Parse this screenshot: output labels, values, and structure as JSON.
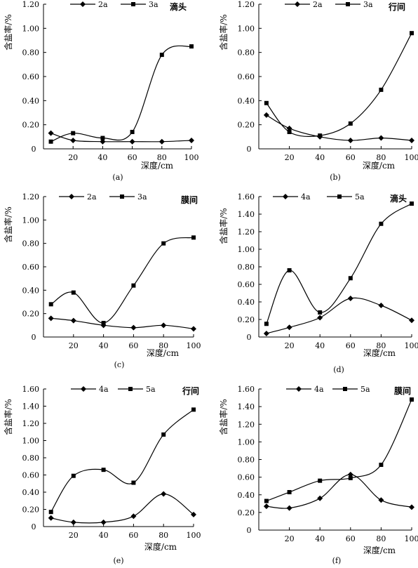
{
  "chart_data": [
    {
      "type": "line",
      "caption": "(a)",
      "corner_label": "滴头",
      "xlabel": "深度/cm",
      "ylabel": "含盐率/%",
      "x_ticks": [
        20,
        40,
        60,
        80,
        100
      ],
      "x_zero_label": "0",
      "y_tick_labels": [
        "0.20",
        "0.40",
        "0.60",
        "0.80",
        "1.00",
        "1.20"
      ],
      "ylim": [
        0,
        1.2
      ],
      "xlim": [
        0,
        100
      ],
      "legend_placement": "top-center",
      "series": [
        {
          "name": "2a",
          "marker": "diamond",
          "x": [
            5,
            20,
            40,
            60,
            80,
            100
          ],
          "y": [
            0.13,
            0.07,
            0.06,
            0.06,
            0.06,
            0.07
          ]
        },
        {
          "name": "3a",
          "marker": "square",
          "x": [
            5,
            20,
            40,
            60,
            80,
            100
          ],
          "y": [
            0.06,
            0.13,
            0.09,
            0.14,
            0.78,
            0.85
          ]
        }
      ]
    },
    {
      "type": "line",
      "caption": "(b)",
      "corner_label": "行间",
      "xlabel": "深度/cm",
      "ylabel": "含盐率/%",
      "x_ticks": [
        20,
        40,
        60,
        80,
        100
      ],
      "x_zero_label": "0",
      "y_tick_labels": [
        "0.20",
        "0.40",
        "0.60",
        "0.80",
        "1.00",
        "1.20"
      ],
      "ylim": [
        0,
        1.2
      ],
      "xlim": [
        0,
        100
      ],
      "legend_placement": "top-center",
      "series": [
        {
          "name": "2a",
          "marker": "diamond",
          "x": [
            5,
            20,
            40,
            60,
            80,
            100
          ],
          "y": [
            0.28,
            0.17,
            0.1,
            0.07,
            0.09,
            0.07
          ]
        },
        {
          "name": "3a",
          "marker": "square",
          "x": [
            5,
            20,
            40,
            60,
            80,
            100
          ],
          "y": [
            0.38,
            0.14,
            0.11,
            0.21,
            0.49,
            0.96
          ]
        }
      ]
    },
    {
      "type": "line",
      "caption": "(c)",
      "corner_label": "膜间",
      "xlabel": "深度/cm",
      "ylabel": "含盐率/%",
      "x_ticks": [
        20,
        40,
        60,
        80,
        100
      ],
      "x_zero_label": "0",
      "y_tick_labels": [
        "0.20",
        "0.40",
        "0.60",
        "0.80",
        "1.00",
        "1.20"
      ],
      "ylim": [
        0,
        1.2
      ],
      "xlim": [
        0,
        100
      ],
      "legend_placement": "top-center",
      "series": [
        {
          "name": "2a",
          "marker": "diamond",
          "x": [
            5,
            20,
            40,
            60,
            80,
            100
          ],
          "y": [
            0.16,
            0.14,
            0.1,
            0.08,
            0.1,
            0.07
          ]
        },
        {
          "name": "3a",
          "marker": "square",
          "x": [
            5,
            20,
            40,
            60,
            80,
            100
          ],
          "y": [
            0.28,
            0.38,
            0.12,
            0.44,
            0.8,
            0.85
          ]
        }
      ]
    },
    {
      "type": "line",
      "caption": "(d)",
      "corner_label": "滴头",
      "xlabel": "深度/cm",
      "ylabel": "含盐率/%",
      "x_ticks": [
        20,
        40,
        60,
        80,
        100
      ],
      "x_zero_label": "0",
      "y_tick_labels": [
        "0.20",
        "0.40",
        "0.60",
        "0.80",
        "1.00",
        "1.20",
        "1.40",
        "1.60"
      ],
      "ylim": [
        0,
        1.6
      ],
      "xlim": [
        0,
        100
      ],
      "legend_placement": "top-center",
      "series": [
        {
          "name": "4a",
          "marker": "diamond",
          "x": [
            5,
            20,
            40,
            60,
            80,
            100
          ],
          "y": [
            0.04,
            0.11,
            0.22,
            0.44,
            0.36,
            0.19
          ]
        },
        {
          "name": "5a",
          "marker": "square",
          "x": [
            5,
            20,
            40,
            60,
            80,
            100
          ],
          "y": [
            0.15,
            0.76,
            0.28,
            0.67,
            1.29,
            1.52
          ]
        }
      ]
    },
    {
      "type": "line",
      "caption": "(e)",
      "corner_label": "行间",
      "xlabel": "深度/cm",
      "ylabel": "含盐率/%",
      "x_ticks": [
        20,
        40,
        60,
        80,
        100
      ],
      "x_zero_label": "0",
      "y_tick_labels": [
        "0.20",
        "0.40",
        "0.60",
        "0.80",
        "1.00",
        "1.20",
        "1.40",
        "1.60"
      ],
      "ylim": [
        0,
        1.6
      ],
      "xlim": [
        0,
        100
      ],
      "legend_placement": "top-center",
      "series": [
        {
          "name": "4a",
          "marker": "diamond",
          "x": [
            5,
            20,
            40,
            60,
            80,
            100
          ],
          "y": [
            0.1,
            0.05,
            0.05,
            0.12,
            0.38,
            0.14
          ]
        },
        {
          "name": "5a",
          "marker": "square",
          "x": [
            5,
            20,
            40,
            60,
            80,
            100
          ],
          "y": [
            0.17,
            0.59,
            0.66,
            0.51,
            1.07,
            1.36
          ]
        }
      ]
    },
    {
      "type": "line",
      "caption": "(f)",
      "corner_label": "膜间",
      "xlabel": "深度/cm",
      "ylabel": "含盐率/%",
      "x_ticks": [
        20,
        40,
        60,
        80,
        100
      ],
      "x_zero_label": "0",
      "y_tick_labels": [
        "0.20",
        "0.40",
        "0.60",
        "0.80",
        "1.00",
        "1.20",
        "1.40",
        "1.60"
      ],
      "ylim": [
        0,
        1.6
      ],
      "xlim": [
        0,
        100
      ],
      "legend_placement": "top-center",
      "series": [
        {
          "name": "4a",
          "marker": "diamond",
          "x": [
            5,
            20,
            40,
            60,
            80,
            100
          ],
          "y": [
            0.27,
            0.25,
            0.36,
            0.63,
            0.34,
            0.26
          ]
        },
        {
          "name": "5a",
          "marker": "square",
          "x": [
            5,
            20,
            40,
            60,
            80,
            100
          ],
          "y": [
            0.33,
            0.43,
            0.56,
            0.59,
            0.74,
            1.48
          ]
        }
      ]
    }
  ]
}
